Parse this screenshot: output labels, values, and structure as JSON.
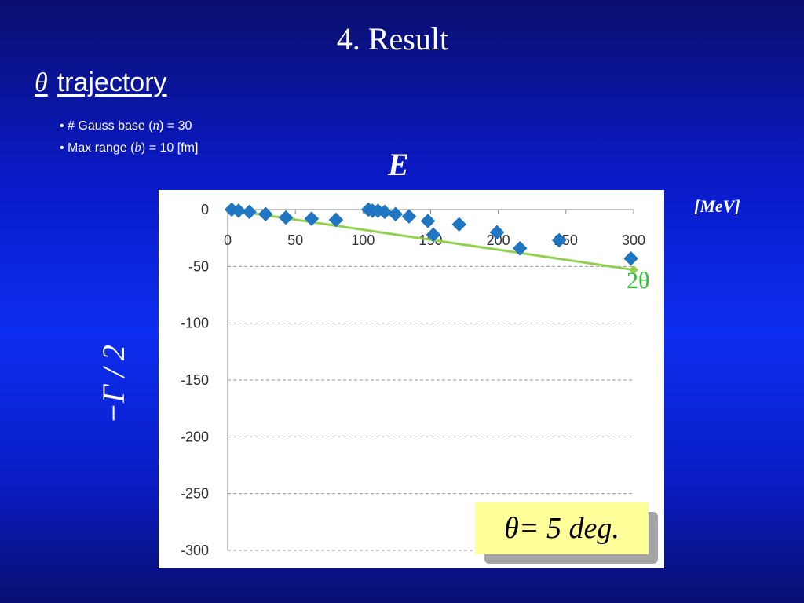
{
  "slide": {
    "title": "4. Result",
    "subtitle_symbol": "θ",
    "subtitle_text": "trajectory",
    "bullets": [
      {
        "pre": "• # Gauss base  (",
        "var": "n",
        "post": ") = 30"
      },
      {
        "pre": "• Max range (",
        "var": "b",
        "post": ") = 10 [fm]"
      }
    ],
    "x_axis_symbol": "E",
    "unit_label": "[MeV]",
    "y_axis_symbol": "−Γ / 2",
    "fit_label": "2θ",
    "result_text": "θ=  5 deg."
  },
  "colors": {
    "background": "#0c2ef0",
    "points": "#1f77c4",
    "fit_line": "#92d050",
    "fit_label": "#2ec12e",
    "result_box": "#ffff99"
  },
  "chart_data": {
    "type": "scatter",
    "title": "",
    "xlabel": "E",
    "ylabel": "−Γ / 2",
    "xlim": [
      0,
      300
    ],
    "ylim": [
      -300,
      0
    ],
    "x_ticks": [
      0,
      50,
      100,
      150,
      200,
      250,
      300
    ],
    "y_ticks": [
      0,
      -50,
      -100,
      -150,
      -200,
      -250,
      -300
    ],
    "x_axis_position": "top",
    "grid": {
      "horizontal": true,
      "vertical": false,
      "style": "dashed"
    },
    "series": [
      {
        "type": "scatter",
        "x": [
          3,
          8,
          16,
          28,
          43,
          62,
          80,
          104,
          107,
          111,
          116,
          124,
          134,
          148,
          152,
          171,
          199,
          216,
          245,
          298
        ],
        "y": [
          0,
          -1,
          -2,
          -4,
          -7,
          -8,
          -9,
          0,
          -1,
          -1,
          -2,
          -4,
          -6,
          -10,
          -22,
          -13,
          -20,
          -34,
          -27,
          -43
        ]
      },
      {
        "type": "line",
        "x": [
          0,
          300
        ],
        "y": [
          0,
          -53
        ]
      }
    ],
    "fit_end_point": {
      "x": 300,
      "y": -53
    }
  }
}
